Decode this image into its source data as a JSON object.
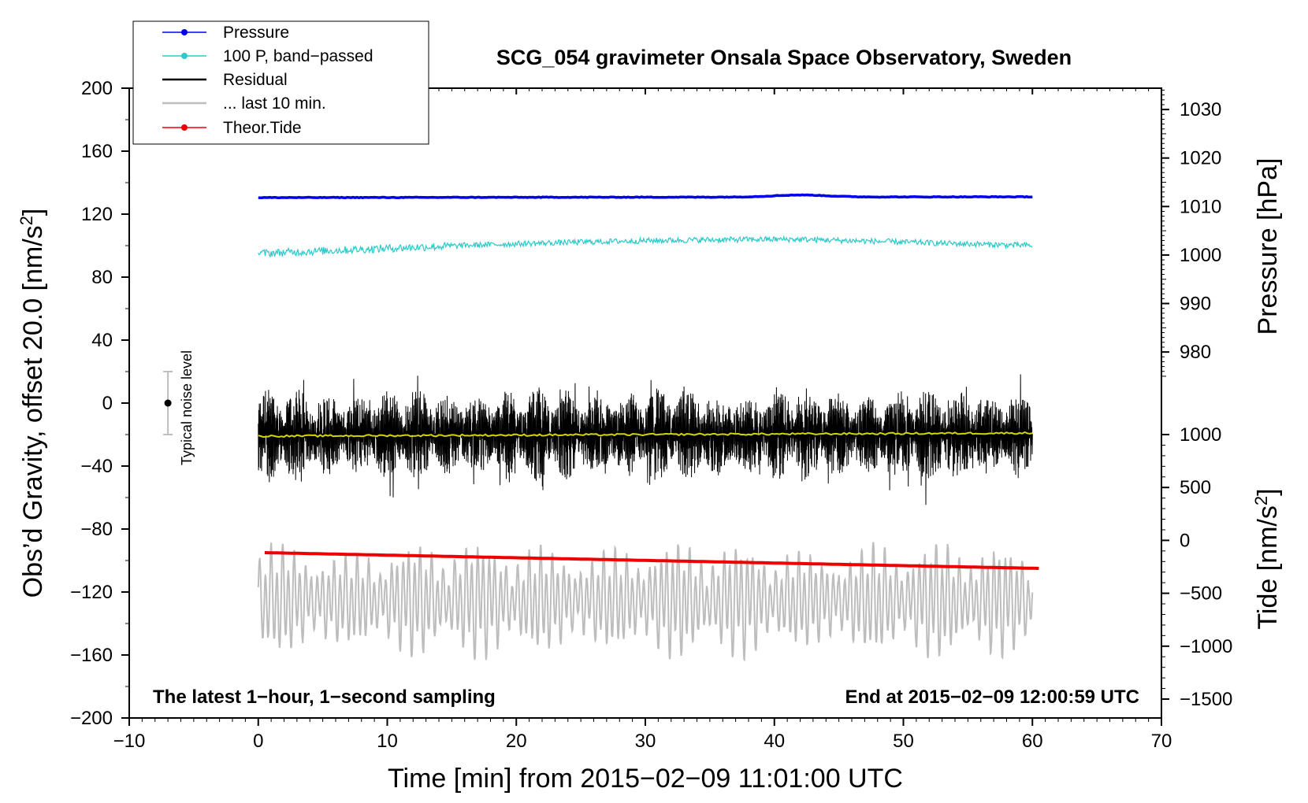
{
  "chart_data": {
    "type": "line",
    "title": "SCG_054 gravimeter Onsala Space Observatory, Sweden",
    "xlabel": "Time [min] from 2015−02−09 11:01:00 UTC",
    "ylabel_left": "Obs’d Gravity, offset 20.0 [nm/s",
    "ylabel_left_sup": "2",
    "ylabel_left_close": "]",
    "ylabel_right_pressure": "Pressure [hPa]",
    "ylabel_right_tide": "Tide [nm/s",
    "ylabel_right_tide_sup": "2",
    "ylabel_right_tide_close": "]",
    "xlim": [
      -10,
      70
    ],
    "ylim_left": [
      -200,
      200
    ],
    "x_ticks": [
      -10,
      0,
      10,
      20,
      30,
      40,
      50,
      60,
      70
    ],
    "x_tick_labels": [
      "−10",
      "0",
      "10",
      "20",
      "30",
      "40",
      "50",
      "60",
      "70"
    ],
    "y_left_ticks": [
      200,
      160,
      120,
      80,
      40,
      0,
      -40,
      -80,
      -120,
      -160,
      -200
    ],
    "y_left_tick_labels": [
      "200",
      "160",
      "120",
      "80",
      "40",
      "0",
      "−40",
      "−80",
      "−120",
      "−160",
      "−200"
    ],
    "pressure_axis": {
      "gravity_at_ref": 131,
      "ref_value": 1012,
      "scale_gravity_per_unit": 3.08,
      "ticks": [
        1030,
        1020,
        1010,
        1000,
        990,
        980
      ],
      "tick_labels": [
        "1030",
        "1020",
        "1010",
        "1000",
        "990",
        "980"
      ]
    },
    "tide_axis": {
      "gravity_at_ref": -20,
      "ref_value": 1000,
      "scale_gravity_per_unit": 0.0672,
      "ticks": [
        1000,
        500,
        0,
        -500,
        -1000,
        -1500
      ],
      "tick_labels": [
        "1000",
        "500",
        "0",
        "−500",
        "−1000",
        "−1500"
      ]
    },
    "legend": [
      {
        "label": "Pressure",
        "color": "#0000ee",
        "marker": true
      },
      {
        "label": "100 P, band−passed",
        "color": "#2ec9c9",
        "marker": true
      },
      {
        "label": "Residual",
        "color": "#000000",
        "marker": false
      },
      {
        "label": "... last 10 min.",
        "color": "#bdbdbd",
        "marker": false
      },
      {
        "label": "Theor.Tide",
        "color": "#ee0000",
        "marker": true
      }
    ],
    "series": [
      {
        "name": "Pressure",
        "color": "#0000ee",
        "x_range": [
          0,
          60
        ],
        "start": 130.5,
        "end": 131.0,
        "bump_center": 42,
        "bump_height": 1.3,
        "noise": 0.4
      },
      {
        "name": "100 P, band−passed",
        "color": "#2ec9c9",
        "x_range": [
          0,
          60
        ],
        "start": 95,
        "peak": 104,
        "peak_at": 42,
        "end": 100,
        "noise": 1.8
      },
      {
        "name": "Residual",
        "color": "#000000",
        "x_range": [
          0,
          60
        ],
        "mean": -20,
        "amplitude_max": 53,
        "typical_min": -60,
        "typical_max": 20
      },
      {
        "name": "Residual smoothed",
        "color": "#d4d400",
        "x_range": [
          0,
          60
        ],
        "start": -21,
        "end": -19
      },
      {
        "name": "Theor.Tide",
        "color": "#ee0000",
        "x_range": [
          0.5,
          60.5
        ],
        "start": -95,
        "end": -105
      },
      {
        "name": "... last 10 min.",
        "color": "#bdbdbd",
        "x_range": [
          0,
          60
        ],
        "mean": -125,
        "amplitude_max": 43,
        "min": -165,
        "max": -80
      }
    ],
    "annotations": {
      "noise_label": "Typical noise level",
      "noise_center": 0,
      "noise_halfwidth": 20,
      "noise_x": -7,
      "left_note": "The latest 1−hour, 1−second sampling",
      "right_note": "End at 2015−02−09 12:00:59 UTC"
    }
  }
}
